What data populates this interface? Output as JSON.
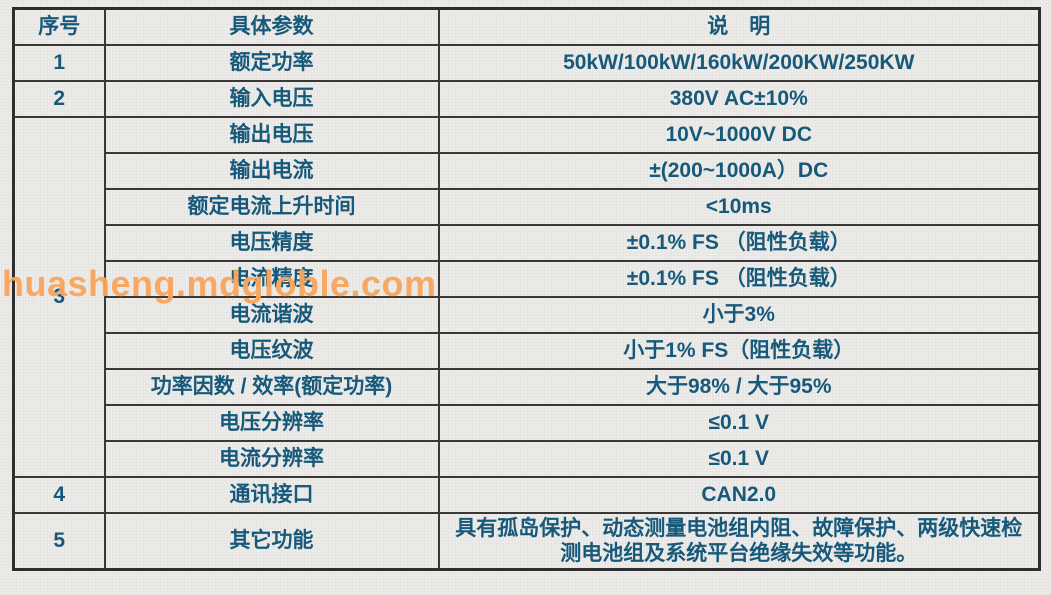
{
  "watermark": {
    "text": "huasheng.mdgloble.com",
    "color": "#f9a55c"
  },
  "colors": {
    "cell_text": "#17597b",
    "border": "#383838",
    "background": "#e9e8e5",
    "watermark": "#f9a55c"
  },
  "table": {
    "headers": [
      "序号",
      "具体参数",
      "说　明"
    ],
    "groups": [
      {
        "no": "1",
        "rows": [
          {
            "param": "额定功率",
            "desc": "50kW/100kW/160kW/200KW/250KW"
          }
        ]
      },
      {
        "no": "2",
        "rows": [
          {
            "param": "输入电压",
            "desc": "380V AC±10%"
          }
        ]
      },
      {
        "no": "3",
        "rows": [
          {
            "param": "输出电压",
            "desc": "10V~1000V DC"
          },
          {
            "param": "输出电流",
            "desc": "±(200~1000A）DC"
          },
          {
            "param": "额定电流上升时间",
            "desc": "<10ms"
          },
          {
            "param": "电压精度",
            "desc": "±0.1% FS （阻性负载）"
          },
          {
            "param": "电流精度",
            "desc": "±0.1% FS （阻性负载）"
          },
          {
            "param": "电流谐波",
            "desc": "小于3%"
          },
          {
            "param": "电压纹波",
            "desc": "小于1% FS（阻性负载）"
          },
          {
            "param": "功率因数 / 效率(额定功率)",
            "desc": "大于98% / 大于95%"
          },
          {
            "param": "电压分辨率",
            "desc": "≤0.1 V"
          },
          {
            "param": "电流分辨率",
            "desc": "≤0.1 V"
          }
        ]
      },
      {
        "no": "4",
        "rows": [
          {
            "param": "通讯接口",
            "desc": "CAN2.0"
          }
        ]
      },
      {
        "no": "5",
        "rows": [
          {
            "param": "其它功能",
            "desc": "具有孤岛保护、动态测量电池组内阻、故障保护、两级快速检测电池组及系统平台绝缘失效等功能。"
          }
        ]
      }
    ]
  }
}
